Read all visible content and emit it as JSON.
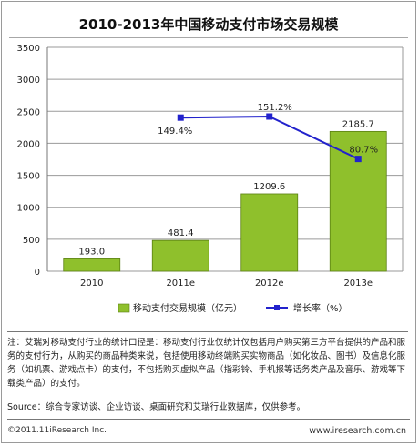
{
  "page": {
    "title": "2010-2013年中国移动支付市场交易规模",
    "notes": "注：艾瑞对移动支付行业的统计口径是：移动支付行业仅统计仅包括用户购买第三方平台提供的产品和服务的支付行为，从购买的商品种类来说，包括使用移动终端购买实物商品（如化妆品、图书）及信息化服务（如机票、游戏点卡）的支付，不包括购买虚拟产品（指彩铃、手机报等话务类产品及音乐、游戏等下载类产品）的支付。",
    "source": "Source：综合专家访谈、企业访谈、桌面研究和艾瑞行业数据库，仅供参考。",
    "copyright": "©2011.11iResearch Inc.",
    "website": "www.iresearch.com.cn"
  },
  "chart_data": {
    "type": "bar",
    "categories": [
      "2010",
      "2011e",
      "2012e",
      "2013e"
    ],
    "ylim": [
      0,
      3500
    ],
    "yticks": [
      "0",
      "500",
      "1000",
      "1500",
      "2000",
      "2500",
      "3000",
      "3500"
    ],
    "grid": true,
    "legend_position": "bottom",
    "series": [
      {
        "name": "移动支付交易规模（亿元）",
        "type": "bar",
        "values": [
          193.0,
          481.4,
          1209.6,
          2185.7
        ],
        "labels": [
          "193.0",
          "481.4",
          "1209.6",
          "2185.7"
        ],
        "color": "#8fc02c"
      },
      {
        "name": "增长率（%）",
        "type": "line",
        "values": [
          null,
          149.4,
          151.2,
          80.7
        ],
        "labels": [
          "",
          "149.4%",
          "151.2%",
          "80.7%"
        ],
        "color": "#2222cc"
      }
    ]
  }
}
